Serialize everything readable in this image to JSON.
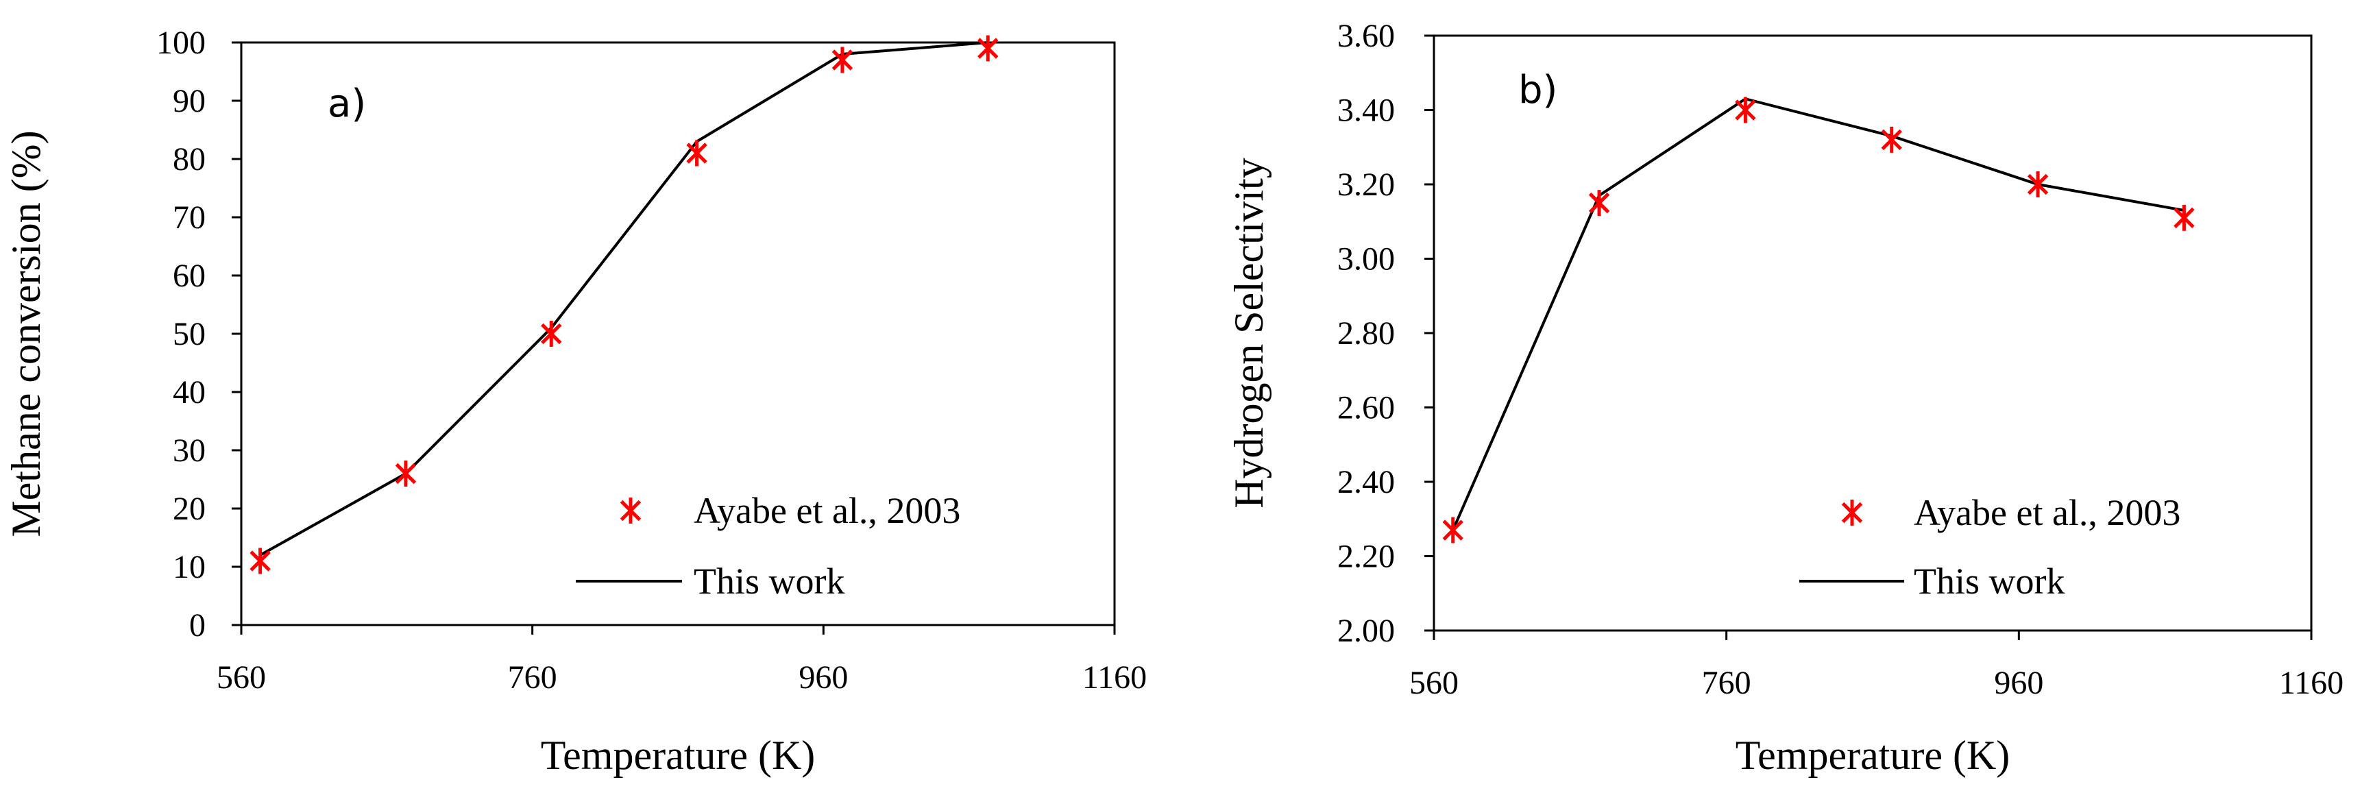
{
  "colors": {
    "experimental": "#ff0000",
    "model": "#000000",
    "axis": "#000000"
  },
  "chart_data": [
    {
      "type": "line",
      "panel_label": "a)",
      "xlabel": "Temperature (K)",
      "ylabel": "Methane conversion (%)",
      "xlim": [
        560,
        1160
      ],
      "ylim": [
        0,
        100
      ],
      "xticks": [
        "560",
        "760",
        "960",
        "1160"
      ],
      "yticks": [
        "0",
        "10",
        "20",
        "30",
        "40",
        "50",
        "60",
        "70",
        "80",
        "90",
        "100"
      ],
      "legend_position": "bottom-right",
      "series": [
        {
          "name": "Ayabe et al., 2003",
          "marker": "asterisk",
          "color": "#ff0000",
          "x": [
            573,
            673,
            773,
            873,
            973,
            1073
          ],
          "y": [
            11,
            26,
            50,
            81,
            97,
            99
          ]
        },
        {
          "name": "This work",
          "marker": "line",
          "color": "#000000",
          "x": [
            573,
            673,
            773,
            873,
            973,
            1073
          ],
          "y": [
            12,
            26,
            51,
            83,
            98,
            100
          ]
        }
      ]
    },
    {
      "type": "line",
      "panel_label": "b)",
      "xlabel": "Temperature (K)",
      "ylabel": "Hydrogen Selectivity",
      "xlim": [
        560,
        1160
      ],
      "ylim": [
        2.0,
        3.6
      ],
      "xticks": [
        "560",
        "760",
        "960",
        "1160"
      ],
      "yticks": [
        "2.00",
        "2.20",
        "2.40",
        "2.60",
        "2.80",
        "3.00",
        "3.20",
        "3.40",
        "3.60"
      ],
      "legend_position": "bottom-right",
      "series": [
        {
          "name": "Ayabe et al., 2003",
          "marker": "asterisk",
          "color": "#ff0000",
          "x": [
            573,
            673,
            773,
            873,
            973,
            1073
          ],
          "y": [
            2.27,
            3.15,
            3.4,
            3.32,
            3.2,
            3.11
          ]
        },
        {
          "name": "This work",
          "marker": "line",
          "color": "#000000",
          "x": [
            573,
            673,
            773,
            873,
            973,
            1073
          ],
          "y": [
            2.27,
            3.17,
            3.43,
            3.33,
            3.2,
            3.13
          ]
        }
      ]
    }
  ]
}
